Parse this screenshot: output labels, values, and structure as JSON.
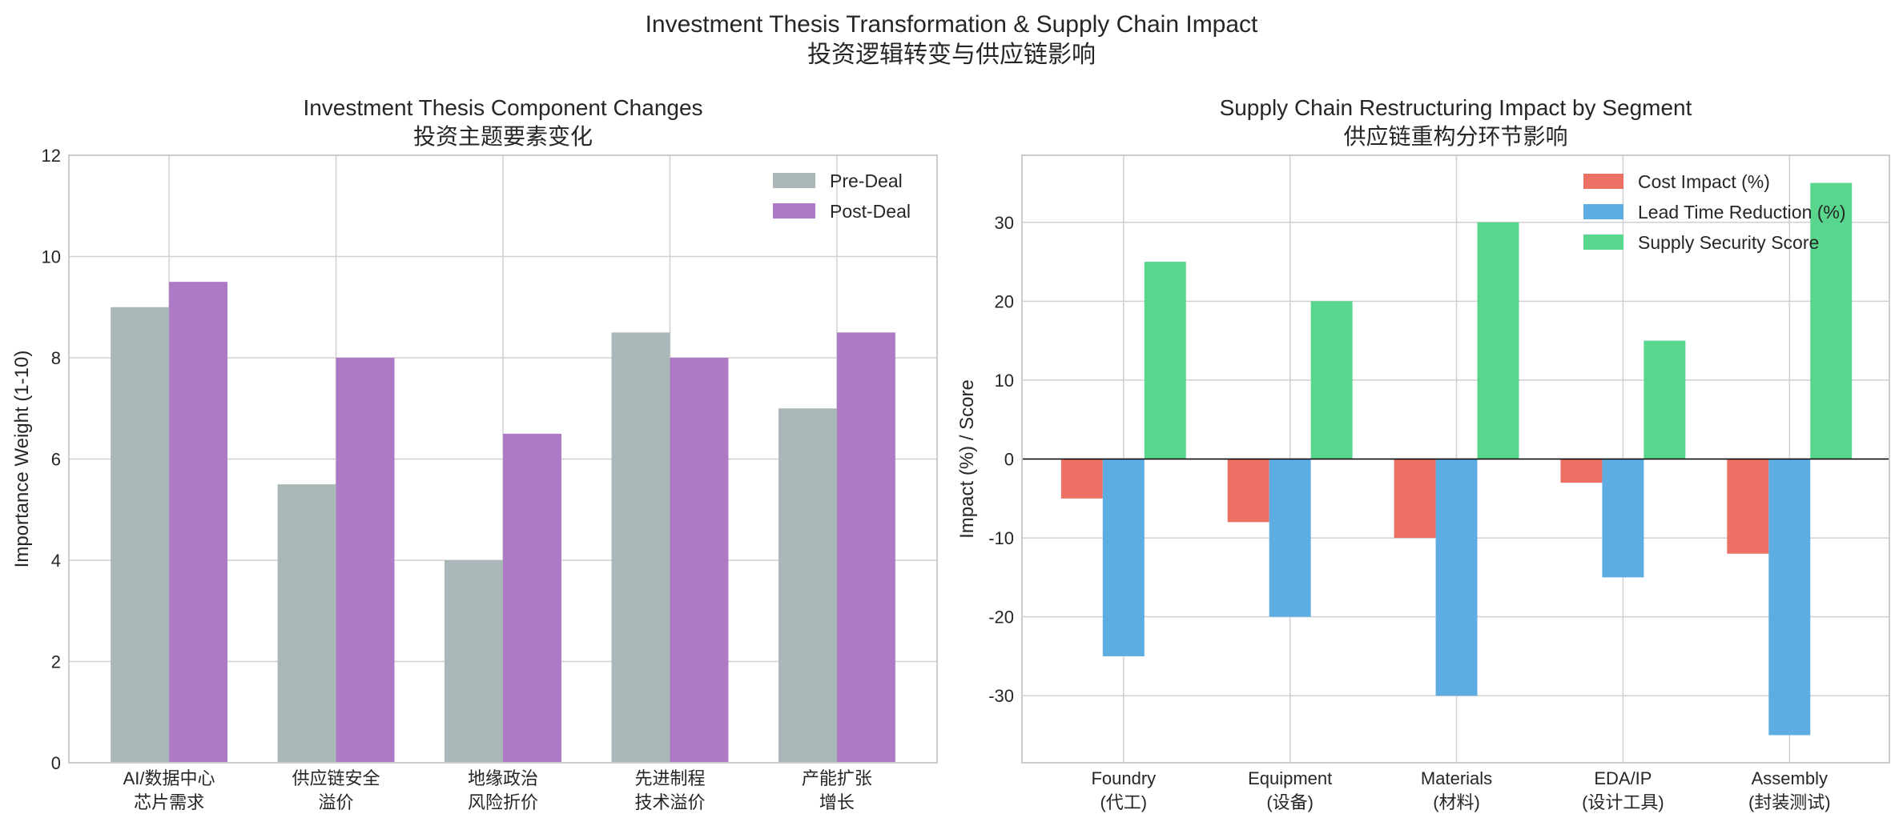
{
  "suptitle": [
    "Investment Thesis Transformation & Supply Chain Impact",
    "投资逻辑转变与供应链影响"
  ],
  "chart_data": [
    {
      "type": "bar",
      "title": [
        "Investment Thesis Component Changes",
        "投资主题要素变化"
      ],
      "xlabel": "",
      "ylabel": "Importance Weight (1-10)",
      "categories": [
        [
          "AI/数据中心",
          "芯片需求"
        ],
        [
          "供应链安全",
          "溢价"
        ],
        [
          "地缘政治",
          "风险折价"
        ],
        [
          "先进制程",
          "技术溢价"
        ],
        [
          "产能扩张",
          "增长"
        ]
      ],
      "series": [
        {
          "name": "Pre-Deal",
          "values": [
            9,
            5.5,
            4,
            8.5,
            7
          ],
          "color": "#aab7b8"
        },
        {
          "name": "Post-Deal",
          "values": [
            9.5,
            8,
            6.5,
            8,
            8.5
          ],
          "color": "#af7ac5"
        }
      ],
      "ylim": [
        0,
        12
      ],
      "yticks": [
        0,
        2,
        4,
        6,
        8,
        10,
        12
      ],
      "grid": true,
      "legend": "upper-right"
    },
    {
      "type": "bar",
      "title": [
        "Supply Chain Restructuring Impact by Segment",
        "供应链重构分环节影响"
      ],
      "xlabel": "",
      "ylabel": "Impact (%) / Score",
      "categories": [
        [
          "Foundry",
          "(代工)"
        ],
        [
          "Equipment",
          "(设备)"
        ],
        [
          "Materials",
          "(材料)"
        ],
        [
          "EDA/IP",
          "(设计工具)"
        ],
        [
          "Assembly",
          "(封装测试)"
        ]
      ],
      "series": [
        {
          "name": "Cost Impact (%)",
          "values": [
            -5,
            -8,
            -10,
            -3,
            -12
          ],
          "color": "#ec7063"
        },
        {
          "name": "Lead Time Reduction (%)",
          "values": [
            -25,
            -20,
            -30,
            -15,
            -35
          ],
          "color": "#5dade2"
        },
        {
          "name": "Supply Security Score",
          "values": [
            25,
            20,
            30,
            15,
            35
          ],
          "color": "#58d68d"
        }
      ],
      "ylim": [
        -38.5,
        38.5
      ],
      "yticks": [
        -30,
        -20,
        -10,
        0,
        10,
        20,
        30
      ],
      "grid": true,
      "legend": "upper-right"
    }
  ]
}
